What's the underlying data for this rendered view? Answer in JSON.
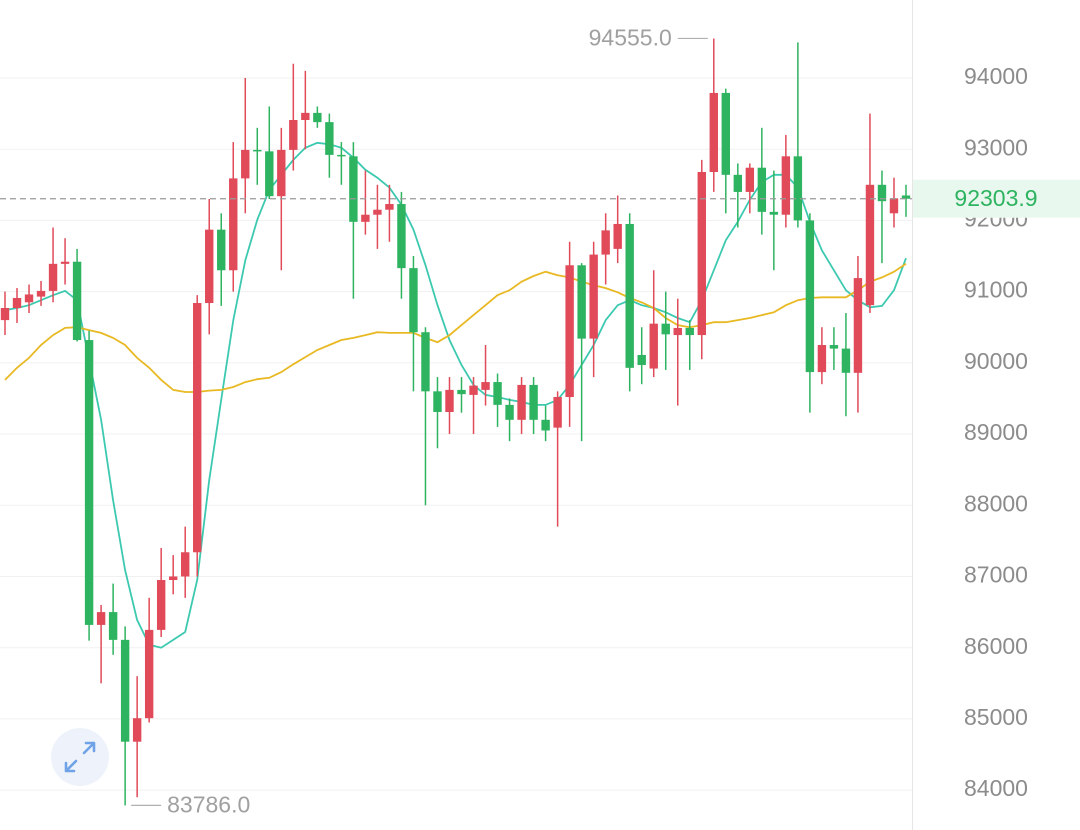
{
  "chart_data": {
    "type": "candlestick",
    "ylim": [
      83440,
      95095
    ],
    "yticks": [
      84000,
      85000,
      86000,
      87000,
      88000,
      89000,
      90000,
      91000,
      92000,
      93000,
      94000
    ],
    "grid": true,
    "up_color": "#e04a59",
    "down_color": "#2eb360",
    "open": [
      90600,
      90770,
      90850,
      90930,
      91010,
      91390,
      91420,
      90320,
      86320,
      86500,
      86110,
      84680,
      85010,
      86250,
      86950,
      87000,
      87340,
      90840,
      91870,
      91300,
      92590,
      92990,
      92970,
      92340,
      92990,
      93410,
      93510,
      93380,
      92920,
      92900,
      91980,
      92080,
      92150,
      92230,
      91330,
      90430,
      89600,
      89310,
      89620,
      89550,
      89620,
      89730,
      89410,
      89200,
      89690,
      89200,
      89090,
      89520,
      91370,
      90340,
      91520,
      91600,
      91950,
      90110,
      89920,
      90550,
      90390,
      90490,
      90390,
      92680,
      93790,
      92640,
      92400,
      92740,
      92120,
      92080,
      92900,
      92000,
      89870,
      90250,
      90200,
      89860,
      90810,
      92500,
      92100,
      92350
    ],
    "high": [
      91000,
      91050,
      91100,
      91150,
      91900,
      91750,
      91600,
      90450,
      86600,
      86900,
      86300,
      85600,
      86700,
      87400,
      87300,
      87700,
      90950,
      92300,
      92100,
      93100,
      94000,
      93300,
      93600,
      93300,
      94200,
      94100,
      93600,
      93500,
      93100,
      93100,
      92700,
      92500,
      92500,
      92400,
      91500,
      90500,
      89800,
      89800,
      89800,
      89800,
      90250,
      89850,
      89500,
      89800,
      89800,
      89400,
      89600,
      91700,
      91400,
      91700,
      92100,
      92350,
      92100,
      90500,
      91300,
      91000,
      90900,
      90600,
      92850,
      94555,
      93850,
      92800,
      92800,
      93300,
      92700,
      93200,
      94500,
      92100,
      90500,
      90500,
      90700,
      91500,
      93500,
      92700,
      92600,
      92500
    ],
    "low": [
      90390,
      90560,
      90700,
      90800,
      90850,
      91100,
      90300,
      86100,
      85500,
      85900,
      83786,
      83900,
      84950,
      86150,
      86750,
      86700,
      87000,
      90400,
      90800,
      91000,
      92100,
      92500,
      92300,
      91300,
      92700,
      93000,
      93300,
      92600,
      92500,
      90900,
      91800,
      91600,
      91700,
      90900,
      89600,
      88000,
      88800,
      89000,
      89300,
      89000,
      89400,
      89100,
      88900,
      89000,
      89000,
      88900,
      87700,
      89100,
      88900,
      89800,
      91100,
      91400,
      89600,
      89700,
      89800,
      89900,
      89400,
      89900,
      90050,
      92400,
      92100,
      91900,
      92100,
      91800,
      91300,
      91900,
      91900,
      89300,
      89700,
      89900,
      89250,
      89300,
      90700,
      91400,
      91900,
      92050
    ],
    "close": [
      90770,
      90910,
      90960,
      91010,
      91390,
      91420,
      90320,
      86320,
      86500,
      86110,
      84680,
      85010,
      86250,
      86950,
      87000,
      87340,
      90840,
      91870,
      91300,
      92590,
      92990,
      92970,
      92340,
      92990,
      93410,
      93510,
      93380,
      92920,
      92900,
      91980,
      92080,
      92150,
      92230,
      91330,
      90430,
      89600,
      89310,
      89620,
      89560,
      89680,
      89730,
      89410,
      89200,
      89690,
      89200,
      89050,
      89520,
      91370,
      90340,
      91520,
      91860,
      91950,
      89930,
      89970,
      90550,
      90400,
      90490,
      90390,
      92680,
      93790,
      92640,
      92400,
      92740,
      92120,
      92080,
      92900,
      92000,
      89870,
      90250,
      90200,
      89860,
      91190,
      92500,
      92270,
      92310,
      92304
    ],
    "ma_lines": [
      {
        "color": "#3cc9b0",
        "values": [
          90740,
          90770,
          90810,
          90880,
          90950,
          91010,
          90880,
          90040,
          89200,
          88070,
          87090,
          86390,
          86040,
          86000,
          86110,
          86220,
          86950,
          88350,
          89480,
          90600,
          91440,
          92010,
          92430,
          92640,
          92850,
          93020,
          93090,
          93070,
          93020,
          92880,
          92710,
          92600,
          92460,
          92220,
          91870,
          91370,
          90810,
          90320,
          89970,
          89690,
          89550,
          89520,
          89480,
          89450,
          89410,
          89410,
          89480,
          89690,
          89970,
          90250,
          90600,
          90810,
          90880,
          90810,
          90770,
          90710,
          90630,
          90570,
          90880,
          91300,
          91720,
          91980,
          92290,
          92540,
          92640,
          92640,
          92460,
          91980,
          91580,
          91300,
          91020,
          90880,
          90780,
          90800,
          91020,
          91470
        ]
      },
      {
        "color": "#e8b923",
        "values": [
          89760,
          89930,
          90070,
          90250,
          90390,
          90490,
          90500,
          90460,
          90420,
          90350,
          90250,
          90070,
          89930,
          89760,
          89620,
          89590,
          89590,
          89610,
          89620,
          89660,
          89730,
          89770,
          89790,
          89870,
          89980,
          90080,
          90180,
          90250,
          90320,
          90350,
          90390,
          90430,
          90420,
          90420,
          90420,
          90350,
          90290,
          90390,
          90530,
          90670,
          90810,
          90950,
          91020,
          91140,
          91220,
          91280,
          91230,
          91200,
          91140,
          91090,
          91050,
          90990,
          90910,
          90850,
          90770,
          90630,
          90530,
          90500,
          90530,
          90570,
          90570,
          90600,
          90630,
          90670,
          90710,
          90810,
          90880,
          90910,
          90920,
          90920,
          90920,
          91020,
          91140,
          91200,
          91280,
          91390
        ]
      }
    ],
    "last_price": 92303.9,
    "high_marker": {
      "value": 94555,
      "label": "94555.0"
    },
    "low_marker": {
      "value": 83786,
      "label": "83786.0"
    }
  }
}
